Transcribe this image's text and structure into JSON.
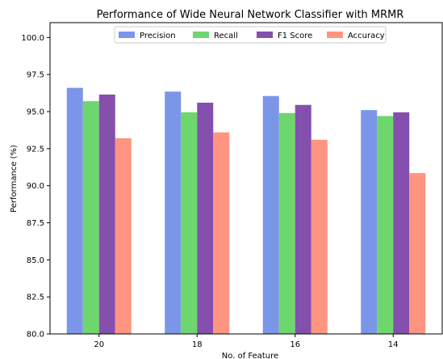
{
  "chart_data": {
    "type": "bar",
    "title": "Performance of Wide Neural Network Classifier with MRMR",
    "xlabel": "No. of Feature",
    "ylabel": "Performance (%)",
    "categories": [
      "20",
      "18",
      "16",
      "14"
    ],
    "ylim": [
      80.0,
      101.0
    ],
    "yticks": [
      "80.0",
      "82.5",
      "85.0",
      "87.5",
      "90.0",
      "92.5",
      "95.0",
      "97.5",
      "100.0"
    ],
    "legend_position": "top-center",
    "grid": false,
    "series": [
      {
        "name": "Precision",
        "color": "#7b96e8",
        "values": [
          96.6,
          96.35,
          96.05,
          95.1
        ]
      },
      {
        "name": "Recall",
        "color": "#6dd66d",
        "values": [
          95.7,
          94.95,
          94.9,
          94.7
        ]
      },
      {
        "name": "F1 Score",
        "color": "#844fad",
        "values": [
          96.15,
          95.6,
          95.45,
          94.95
        ]
      },
      {
        "name": "Accuracy",
        "color": "#ff9580",
        "values": [
          93.2,
          93.6,
          93.1,
          90.85
        ]
      }
    ]
  }
}
